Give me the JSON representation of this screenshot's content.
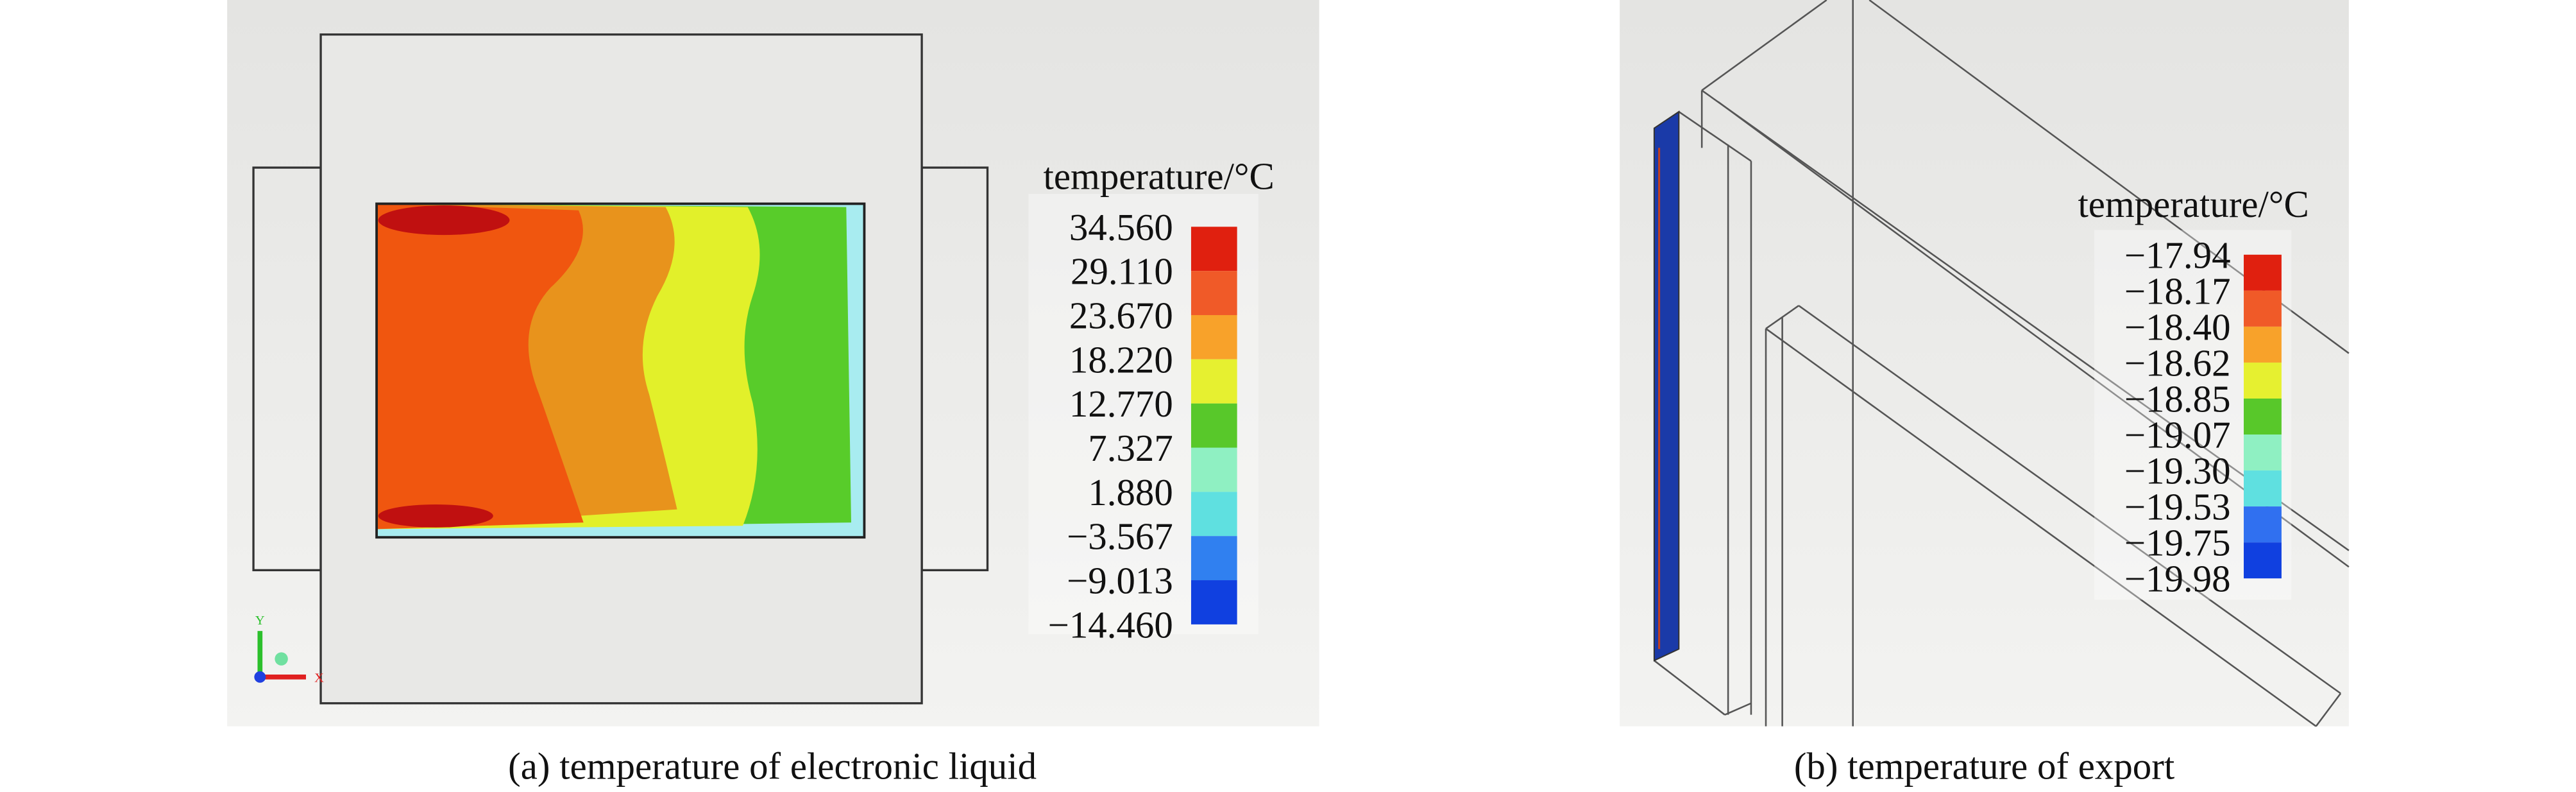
{
  "panels": [
    {
      "caption": "(a) temperature of electronic liquid",
      "legend_title": "temperature/°C",
      "legend_labels": [
        "34.560",
        "29.110",
        "23.670",
        "18.220",
        "12.770",
        "7.327",
        "1.880",
        "−3.567",
        "−9.013",
        "−14.460"
      ],
      "legend_colors": [
        "#e0200f",
        "#f05a28",
        "#f8a22a",
        "#e6f030",
        "#58c82a",
        "#8ff0c2",
        "#5fe0e0",
        "#3080f0",
        "#1040e0"
      ],
      "axis_labels": {
        "y": "Y",
        "x": "X"
      }
    },
    {
      "caption": "(b) temperature of export",
      "legend_title": "temperature/°C",
      "legend_labels": [
        "−17.94",
        "−18.17",
        "−18.40",
        "−18.62",
        "−18.85",
        "−19.07",
        "−19.30",
        "−19.53",
        "−19.75",
        "−19.98"
      ],
      "legend_colors": [
        "#e0200f",
        "#f05a28",
        "#f8a22a",
        "#e6f030",
        "#58c82a",
        "#8ff0c2",
        "#5fe0e0",
        "#3070f0",
        "#1040e0"
      ]
    }
  ]
}
